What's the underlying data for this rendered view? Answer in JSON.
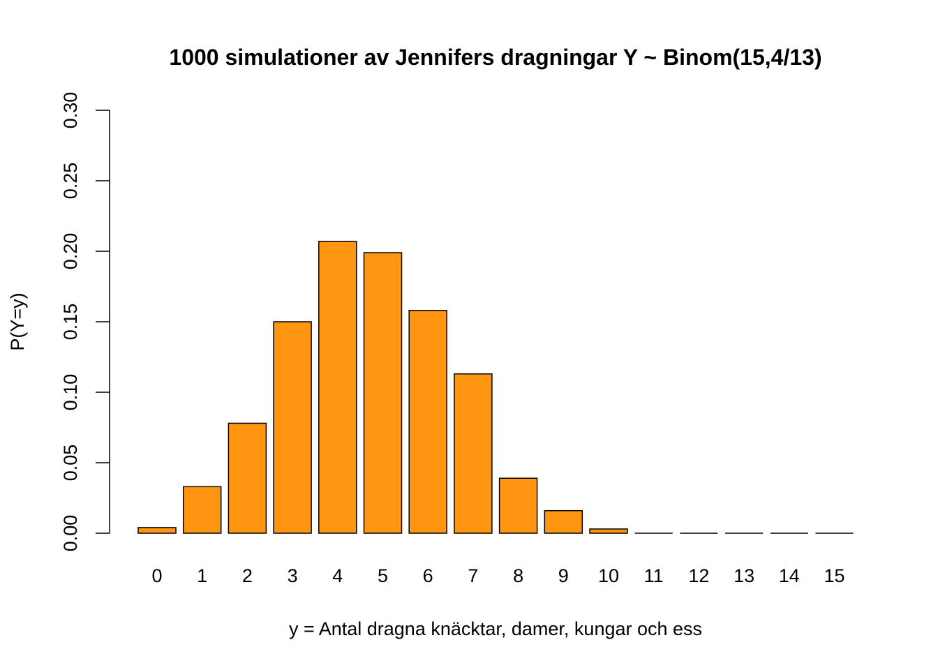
{
  "chart_data": {
    "type": "bar",
    "title": "1000 simulationer av Jennifers dragningar Y ~ Binom(15,4/13)",
    "xlabel": "y = Antal dragna knäcktar, damer, kungar och ess",
    "ylabel": "P(Y=y)",
    "categories": [
      "0",
      "1",
      "2",
      "3",
      "4",
      "5",
      "6",
      "7",
      "8",
      "9",
      "10",
      "11",
      "12",
      "13",
      "14",
      "15"
    ],
    "values": [
      0.004,
      0.033,
      0.078,
      0.15,
      0.207,
      0.199,
      0.158,
      0.113,
      0.039,
      0.016,
      0.003,
      0.0,
      0.0,
      0.0,
      0.0,
      0.0
    ],
    "ylim": [
      0,
      0.3
    ],
    "yticks": [
      "0.00",
      "0.05",
      "0.10",
      "0.15",
      "0.20",
      "0.25",
      "0.30"
    ],
    "bar_color": "#FF9510",
    "bar_border_color": "#000000",
    "grid": false,
    "legend": "none"
  }
}
